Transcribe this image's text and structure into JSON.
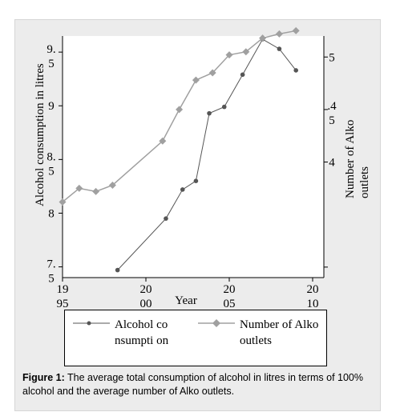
{
  "chart_data": {
    "type": "line",
    "xlabel": "Year",
    "ylabel_left": "Alcohol consumption in litres",
    "ylabel_right": "Number of Alko outlets",
    "x_ticks": [
      1995,
      2000,
      2005,
      2010
    ],
    "x_tick_labels": [
      [
        "19",
        "95"
      ],
      [
        "20",
        "00"
      ],
      [
        "20",
        "05"
      ],
      [
        "20",
        "10"
      ]
    ],
    "xlim": [
      1995,
      2010
    ],
    "left_ticks": [
      7.5,
      8,
      8.5,
      9,
      9.5
    ],
    "left_tick_labels": [
      [
        "7.",
        "5"
      ],
      [
        "8"
      ],
      [
        "8.",
        "5"
      ],
      [
        "9"
      ],
      [
        "9.",
        "5"
      ]
    ],
    "ylim_left": [
      7.4,
      9.65
    ],
    "right_ticks": [
      300,
      400,
      450,
      500
    ],
    "right_tick_labels": [
      [
        ""
      ],
      [
        "4"
      ],
      [
        ".4",
        "5"
      ],
      [
        "5"
      ]
    ],
    "ylim_right": [
      290,
      520
    ],
    "series": [
      {
        "name": "Alcohol consumption",
        "axis": "left",
        "marker": "circle",
        "color": "#555555",
        "x": [
          1998.3,
          2001.2,
          2002.2,
          2003.0,
          2003.8,
          2004.7,
          2005.8,
          2007.0,
          2008.0,
          2009.0
        ],
        "y": [
          7.47,
          7.95,
          8.22,
          8.3,
          8.93,
          8.99,
          9.29,
          9.62,
          9.53,
          9.33
        ]
      },
      {
        "name": "Number of Alko outlets",
        "axis": "right",
        "marker": "diamond",
        "color": "#a0a0a0",
        "x": [
          1995.0,
          1996.0,
          1997.0,
          1998.0,
          2001.0,
          2002.0,
          2003.0,
          2004.0,
          2005.0,
          2006.0,
          2007.0,
          2008.0,
          2009.0
        ],
        "y": [
          362,
          375,
          372,
          378,
          420,
          450,
          478,
          485,
          502,
          505,
          518,
          522,
          525
        ]
      }
    ],
    "legend": {
      "position": "bottom",
      "items": [
        {
          "label": "Alcohol consumpti on",
          "marker": "circle",
          "color": "#555555"
        },
        {
          "label": "Number of Alko outlets",
          "marker": "diamond",
          "color": "#a0a0a0"
        }
      ]
    }
  },
  "caption": {
    "label": "Figure 1:",
    "text": " The average total consumption of alcohol in litres in terms of 100% alcohol and the average number of Alko outlets."
  }
}
